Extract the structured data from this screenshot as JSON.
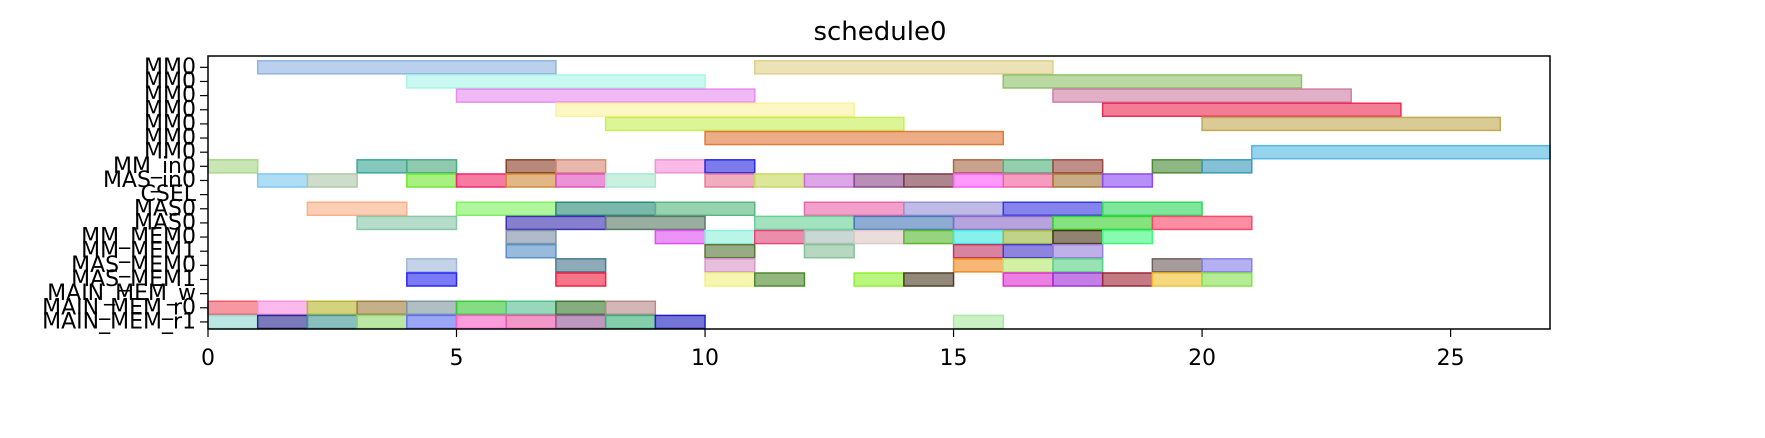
{
  "chart_data": {
    "type": "gantt",
    "title": "schedule0",
    "xlim": [
      0,
      27
    ],
    "x_ticks": [
      0,
      5,
      10,
      15,
      20,
      25
    ],
    "x_tick_labels": [
      "0",
      "5",
      "10",
      "15",
      "20",
      "25"
    ],
    "rows": [
      "MM0",
      "MM0",
      "MM0",
      "MM0",
      "MM0",
      "MM0",
      "MM0",
      "MM_in0",
      "MAS_in0",
      "CSEL",
      "MAS0",
      "MAS0",
      "MM_MEM0",
      "MM_MEM1",
      "MAS_MEM0",
      "MAS_MEM1",
      "MAIN_MEM_w",
      "MAIN_MEM_r0",
      "MAIN_MEM_r1"
    ],
    "grid": false,
    "tasks": [
      {
        "row": 0,
        "start": 1,
        "end": 7,
        "color": "#8fb3e0"
      },
      {
        "row": 0,
        "start": 11,
        "end": 17,
        "color": "#e0d08a"
      },
      {
        "row": 1,
        "start": 4,
        "end": 10,
        "color": "#a8f5e8"
      },
      {
        "row": 1,
        "start": 16,
        "end": 22,
        "color": "#8fc26a"
      },
      {
        "row": 2,
        "start": 5,
        "end": 11,
        "color": "#e88cf0"
      },
      {
        "row": 2,
        "start": 17,
        "end": 23,
        "color": "#cf7ea6"
      },
      {
        "row": 3,
        "start": 7,
        "end": 13,
        "color": "#fbf2a0"
      },
      {
        "row": 3,
        "start": 18,
        "end": 24,
        "color": "#ee2d55"
      },
      {
        "row": 4,
        "start": 8,
        "end": 14,
        "color": "#c8ef55"
      },
      {
        "row": 4,
        "start": 20,
        "end": 26,
        "color": "#c2a955"
      },
      {
        "row": 5,
        "start": 10,
        "end": 16,
        "color": "#e07a3c"
      },
      {
        "row": 6,
        "start": 21,
        "end": 27,
        "color": "#55b8e0"
      },
      {
        "row": 7,
        "start": 0,
        "end": 1,
        "color": "#a8d888"
      },
      {
        "row": 7,
        "start": 3,
        "end": 4,
        "color": "#3aa896"
      },
      {
        "row": 7,
        "start": 4,
        "end": 5,
        "color": "#4aaa80"
      },
      {
        "row": 7,
        "start": 6,
        "end": 7,
        "color": "#8a4028"
      },
      {
        "row": 7,
        "start": 7,
        "end": 8,
        "color": "#d88a78"
      },
      {
        "row": 7,
        "start": 9,
        "end": 10,
        "color": "#f590d8"
      },
      {
        "row": 7,
        "start": 10,
        "end": 11,
        "color": "#2a2ae0"
      },
      {
        "row": 7,
        "start": 15,
        "end": 16,
        "color": "#a86a48"
      },
      {
        "row": 7,
        "start": 16,
        "end": 17,
        "color": "#50b07a"
      },
      {
        "row": 7,
        "start": 17,
        "end": 18,
        "color": "#9a4a40"
      },
      {
        "row": 7,
        "start": 19,
        "end": 20,
        "color": "#4a8a38"
      },
      {
        "row": 7,
        "start": 20,
        "end": 21,
        "color": "#3a9aba"
      },
      {
        "row": 8,
        "start": 1,
        "end": 2,
        "color": "#80c8f0"
      },
      {
        "row": 8,
        "start": 2,
        "end": 3,
        "color": "#b0c8a8"
      },
      {
        "row": 8,
        "start": 4,
        "end": 5,
        "color": "#70e830"
      },
      {
        "row": 8,
        "start": 5,
        "end": 6,
        "color": "#f02868"
      },
      {
        "row": 8,
        "start": 6,
        "end": 7,
        "color": "#d08a3a"
      },
      {
        "row": 8,
        "start": 7,
        "end": 8,
        "color": "#e050c0"
      },
      {
        "row": 8,
        "start": 8,
        "end": 9,
        "color": "#a8e8d0"
      },
      {
        "row": 8,
        "start": 10,
        "end": 11,
        "color": "#e87a98"
      },
      {
        "row": 8,
        "start": 11,
        "end": 12,
        "color": "#c8d860"
      },
      {
        "row": 8,
        "start": 12,
        "end": 13,
        "color": "#c870d8"
      },
      {
        "row": 8,
        "start": 13,
        "end": 14,
        "color": "#8a4a8a"
      },
      {
        "row": 8,
        "start": 14,
        "end": 15,
        "color": "#7a3a4a"
      },
      {
        "row": 8,
        "start": 15,
        "end": 16,
        "color": "#ff5aff"
      },
      {
        "row": 8,
        "start": 16,
        "end": 17,
        "color": "#f0609a"
      },
      {
        "row": 8,
        "start": 17,
        "end": 18,
        "color": "#a8783a"
      },
      {
        "row": 8,
        "start": 18,
        "end": 19,
        "color": "#8a4af0"
      },
      {
        "row": 10,
        "start": 2,
        "end": 4,
        "color": "#f8b088"
      },
      {
        "row": 10,
        "start": 5,
        "end": 7,
        "color": "#80f060"
      },
      {
        "row": 10,
        "start": 7,
        "end": 9,
        "color": "#2a8a78"
      },
      {
        "row": 10,
        "start": 9,
        "end": 11,
        "color": "#58b880"
      },
      {
        "row": 10,
        "start": 12,
        "end": 14,
        "color": "#e868a8"
      },
      {
        "row": 10,
        "start": 14,
        "end": 16,
        "color": "#9890d8"
      },
      {
        "row": 10,
        "start": 16,
        "end": 18,
        "color": "#3838e0"
      },
      {
        "row": 10,
        "start": 18,
        "end": 20,
        "color": "#30d860"
      },
      {
        "row": 11,
        "start": 3,
        "end": 5,
        "color": "#88c8a8"
      },
      {
        "row": 11,
        "start": 6,
        "end": 8,
        "color": "#3a30b0"
      },
      {
        "row": 11,
        "start": 8,
        "end": 10,
        "color": "#5a7a68"
      },
      {
        "row": 11,
        "start": 11,
        "end": 13,
        "color": "#6ad098"
      },
      {
        "row": 11,
        "start": 13,
        "end": 15,
        "color": "#4878b8"
      },
      {
        "row": 11,
        "start": 15,
        "end": 17,
        "color": "#8a6ac8"
      },
      {
        "row": 11,
        "start": 17,
        "end": 19,
        "color": "#38d030"
      },
      {
        "row": 11,
        "start": 19,
        "end": 21,
        "color": "#f8486a"
      },
      {
        "row": 12,
        "start": 6,
        "end": 7,
        "color": "#8090a8"
      },
      {
        "row": 12,
        "start": 9,
        "end": 10,
        "color": "#e050f0"
      },
      {
        "row": 12,
        "start": 10,
        "end": 11,
        "color": "#90f0d8"
      },
      {
        "row": 12,
        "start": 11,
        "end": 12,
        "color": "#e04878"
      },
      {
        "row": 12,
        "start": 12,
        "end": 13,
        "color": "#a8c0b8"
      },
      {
        "row": 12,
        "start": 13,
        "end": 14,
        "color": "#e0c8c8"
      },
      {
        "row": 12,
        "start": 14,
        "end": 15,
        "color": "#58b830"
      },
      {
        "row": 12,
        "start": 15,
        "end": 16,
        "color": "#40e8e0"
      },
      {
        "row": 12,
        "start": 16,
        "end": 17,
        "color": "#98b840"
      },
      {
        "row": 12,
        "start": 17,
        "end": 18,
        "color": "#483818"
      },
      {
        "row": 12,
        "start": 18,
        "end": 19,
        "color": "#40f880"
      },
      {
        "row": 13,
        "start": 6,
        "end": 7,
        "color": "#5890c8"
      },
      {
        "row": 13,
        "start": 10,
        "end": 11,
        "color": "#587838"
      },
      {
        "row": 13,
        "start": 12,
        "end": 13,
        "color": "#88c098"
      },
      {
        "row": 13,
        "start": 15,
        "end": 16,
        "color": "#c03868"
      },
      {
        "row": 13,
        "start": 16,
        "end": 17,
        "color": "#4838c8"
      },
      {
        "row": 13,
        "start": 17,
        "end": 18,
        "color": "#9880d8"
      },
      {
        "row": 14,
        "start": 4,
        "end": 5,
        "color": "#a0b8d8"
      },
      {
        "row": 14,
        "start": 7,
        "end": 8,
        "color": "#4a7890"
      },
      {
        "row": 14,
        "start": 10,
        "end": 11,
        "color": "#d898c8"
      },
      {
        "row": 14,
        "start": 15,
        "end": 16,
        "color": "#f08a20"
      },
      {
        "row": 14,
        "start": 16,
        "end": 17,
        "color": "#b8e870"
      },
      {
        "row": 14,
        "start": 17,
        "end": 18,
        "color": "#58d088"
      },
      {
        "row": 14,
        "start": 19,
        "end": 20,
        "color": "#706060"
      },
      {
        "row": 14,
        "start": 20,
        "end": 21,
        "color": "#8880e8"
      },
      {
        "row": 15,
        "start": 4,
        "end": 5,
        "color": "#2828f0"
      },
      {
        "row": 15,
        "start": 7,
        "end": 8,
        "color": "#f02040"
      },
      {
        "row": 15,
        "start": 10,
        "end": 11,
        "color": "#f0f080"
      },
      {
        "row": 15,
        "start": 11,
        "end": 12,
        "color": "#508a30"
      },
      {
        "row": 15,
        "start": 13,
        "end": 14,
        "color": "#90f030"
      },
      {
        "row": 15,
        "start": 14,
        "end": 15,
        "color": "#504028"
      },
      {
        "row": 15,
        "start": 16,
        "end": 17,
        "color": "#e030d0"
      },
      {
        "row": 15,
        "start": 17,
        "end": 18,
        "color": "#a030d8"
      },
      {
        "row": 15,
        "start": 18,
        "end": 19,
        "color": "#a02838"
      },
      {
        "row": 15,
        "start": 19,
        "end": 20,
        "color": "#f0c030"
      },
      {
        "row": 15,
        "start": 20,
        "end": 21,
        "color": "#88e050"
      },
      {
        "row": 17,
        "start": 0,
        "end": 1,
        "color": "#f05868"
      },
      {
        "row": 17,
        "start": 1,
        "end": 2,
        "color": "#f890e0"
      },
      {
        "row": 17,
        "start": 2,
        "end": 3,
        "color": "#b8b830"
      },
      {
        "row": 17,
        "start": 3,
        "end": 4,
        "color": "#a08040"
      },
      {
        "row": 17,
        "start": 4,
        "end": 5,
        "color": "#8098a0"
      },
      {
        "row": 17,
        "start": 5,
        "end": 6,
        "color": "#38c838"
      },
      {
        "row": 17,
        "start": 6,
        "end": 7,
        "color": "#58c090"
      },
      {
        "row": 17,
        "start": 7,
        "end": 8,
        "color": "#3a7a30"
      },
      {
        "row": 17,
        "start": 8,
        "end": 9,
        "color": "#b88a8a"
      },
      {
        "row": 18,
        "start": 0,
        "end": 1,
        "color": "#90d8d0"
      },
      {
        "row": 18,
        "start": 1,
        "end": 2,
        "color": "#2a2890"
      },
      {
        "row": 18,
        "start": 2,
        "end": 3,
        "color": "#409898"
      },
      {
        "row": 18,
        "start": 3,
        "end": 4,
        "color": "#90d870"
      },
      {
        "row": 18,
        "start": 4,
        "end": 5,
        "color": "#6070f0"
      },
      {
        "row": 18,
        "start": 5,
        "end": 6,
        "color": "#f860c8"
      },
      {
        "row": 18,
        "start": 6,
        "end": 7,
        "color": "#e858a8"
      },
      {
        "row": 18,
        "start": 7,
        "end": 8,
        "color": "#985898"
      },
      {
        "row": 18,
        "start": 8,
        "end": 9,
        "color": "#38b078"
      },
      {
        "row": 18,
        "start": 9,
        "end": 10,
        "color": "#2020c0"
      },
      {
        "row": 18,
        "start": 15,
        "end": 16,
        "color": "#a8e8a0"
      }
    ]
  }
}
